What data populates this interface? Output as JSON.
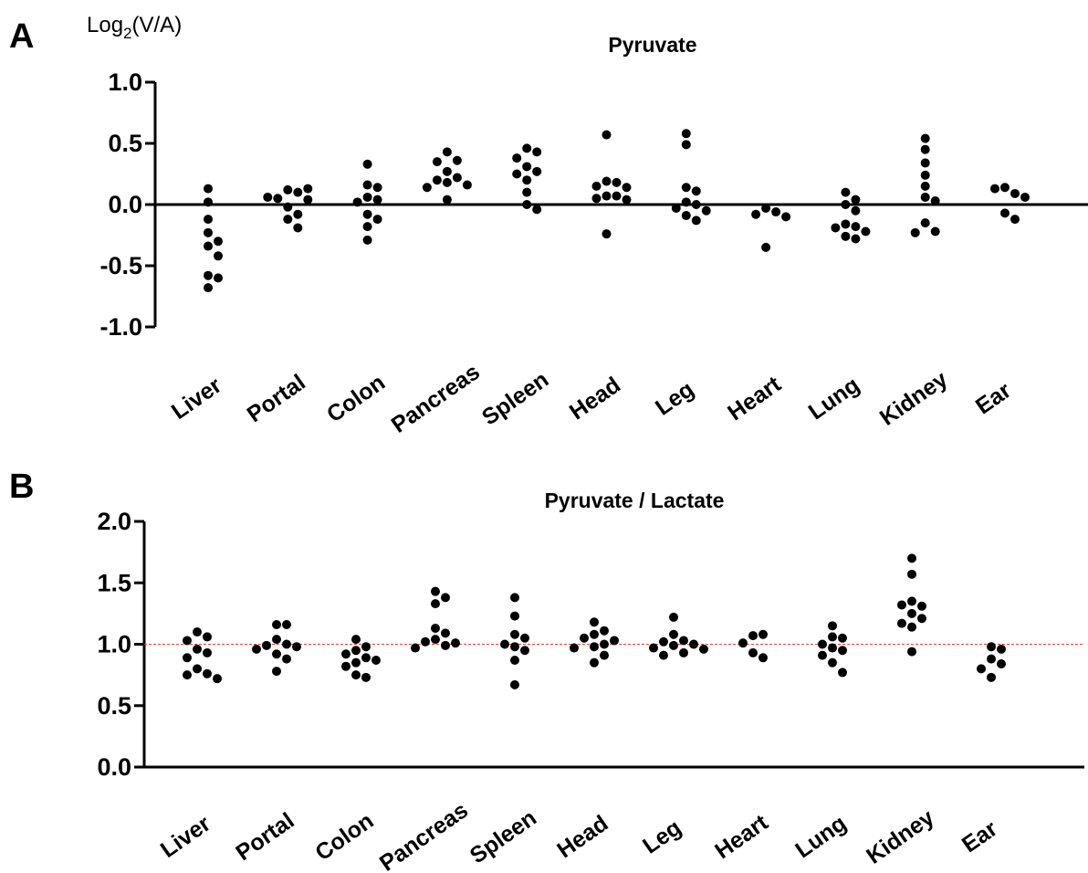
{
  "chart_data": [
    {
      "panel": "A",
      "type": "scatter",
      "title": "Pyruvate",
      "ylabel": "Log2(V/A)",
      "ylabel_parts": {
        "base": "Log",
        "sub": "2",
        "rest": "(V/A)"
      },
      "ylim": [
        -1.0,
        1.0
      ],
      "yticks": [
        1.0,
        0.5,
        0.0,
        -0.5,
        -1.0
      ],
      "ytick_labels": [
        "1.0",
        "0.5",
        "0.0",
        "-0.5",
        "-1.0"
      ],
      "baseline": 0.0,
      "grid": false,
      "categories": [
        "Liver",
        "Portal",
        "Colon",
        "Pancreas",
        "Spleen",
        "Head",
        "Leg",
        "Heart",
        "Lung",
        "Kidney",
        "Ear"
      ],
      "values": [
        [
          0.13,
          0.02,
          -0.12,
          -0.23,
          -0.3,
          -0.34,
          -0.42,
          -0.58,
          -0.6,
          -0.68
        ],
        [
          0.12,
          0.1,
          0.05,
          0.13,
          0.06,
          0.04,
          -0.02,
          -0.08,
          -0.12,
          -0.19
        ],
        [
          0.33,
          0.16,
          0.14,
          0.06,
          0.04,
          0.02,
          -0.08,
          -0.12,
          -0.18,
          -0.29
        ],
        [
          0.43,
          0.36,
          0.35,
          0.27,
          0.22,
          0.2,
          0.18,
          0.16,
          0.14,
          0.04
        ],
        [
          0.46,
          0.43,
          0.38,
          0.31,
          0.27,
          0.25,
          0.2,
          0.1,
          0.0,
          -0.04
        ],
        [
          0.57,
          0.19,
          0.18,
          0.15,
          0.14,
          0.07,
          0.07,
          0.05,
          0.04,
          -0.24
        ],
        [
          0.58,
          0.49,
          0.14,
          0.11,
          0.02,
          0.0,
          -0.03,
          -0.05,
          -0.09,
          -0.13
        ],
        [
          -0.03,
          -0.06,
          -0.08,
          -0.1,
          -0.35
        ],
        [
          0.1,
          0.04,
          0.0,
          -0.05,
          -0.16,
          -0.18,
          -0.19,
          -0.22,
          -0.26,
          -0.28
        ],
        [
          0.54,
          0.45,
          0.34,
          0.24,
          0.15,
          0.06,
          0.03,
          -0.15,
          -0.22,
          -0.23
        ],
        [
          0.14,
          0.09,
          0.13,
          0.06,
          -0.07,
          -0.12
        ]
      ]
    },
    {
      "panel": "B",
      "type": "scatter",
      "title": "Pyruvate / Lactate",
      "ylabel": "",
      "ylim": [
        0.0,
        2.0
      ],
      "yticks": [
        2.0,
        1.5,
        1.0,
        0.5,
        0.0
      ],
      "ytick_labels": [
        "2.0",
        "1.5",
        "1.0",
        "0.5",
        "0.0"
      ],
      "reference_line": {
        "y": 1.0,
        "color": "#e04040",
        "style": "dashed"
      },
      "grid": false,
      "categories": [
        "Liver",
        "Portal",
        "Colon",
        "Pancreas",
        "Spleen",
        "Head",
        "Leg",
        "Heart",
        "Lung",
        "Kidney",
        "Ear"
      ],
      "values": [
        [
          1.1,
          1.06,
          1.03,
          0.96,
          0.93,
          0.89,
          0.8,
          0.76,
          0.75,
          0.72
        ],
        [
          1.16,
          1.16,
          1.04,
          1.0,
          0.99,
          0.98,
          0.96,
          0.92,
          0.88,
          0.78
        ],
        [
          1.04,
          0.98,
          0.95,
          0.92,
          0.89,
          0.87,
          0.85,
          0.82,
          0.75,
          0.73
        ],
        [
          1.43,
          1.38,
          1.33,
          1.13,
          1.09,
          1.04,
          1.02,
          1.01,
          0.99,
          0.97
        ],
        [
          1.38,
          1.23,
          1.08,
          1.05,
          1.0,
          0.98,
          0.95,
          0.87,
          0.67
        ],
        [
          1.18,
          1.11,
          1.08,
          1.05,
          1.03,
          1.0,
          0.98,
          0.97,
          0.91,
          0.85
        ],
        [
          1.22,
          1.08,
          1.03,
          1.02,
          1.0,
          0.99,
          0.97,
          0.96,
          0.93,
          0.91
        ],
        [
          1.07,
          1.08,
          1.01,
          0.93,
          0.89
        ],
        [
          1.15,
          1.06,
          1.05,
          1.0,
          0.97,
          0.95,
          0.91,
          0.85,
          0.77
        ],
        [
          1.7,
          1.57,
          1.35,
          1.31,
          1.32,
          1.25,
          1.21,
          1.17,
          1.14,
          0.94
        ],
        [
          0.98,
          0.96,
          0.88,
          0.84,
          0.8,
          0.73
        ]
      ]
    }
  ],
  "panel_letters": {
    "a": "A",
    "b": "B"
  },
  "colors": {
    "axis": "#000000",
    "points": "#000000",
    "reference_line": "#e04040"
  }
}
